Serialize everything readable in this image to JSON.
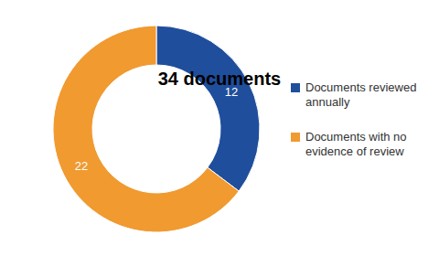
{
  "chart_data": {
    "type": "pie",
    "title": "34 documents",
    "categories": [
      "Documents reviewed annually",
      "Documents with no evidence of review"
    ],
    "values": [
      12,
      22
    ],
    "colors": [
      "#1f4e9c",
      "#f09a30"
    ],
    "data_labels": true,
    "legend": "right"
  }
}
